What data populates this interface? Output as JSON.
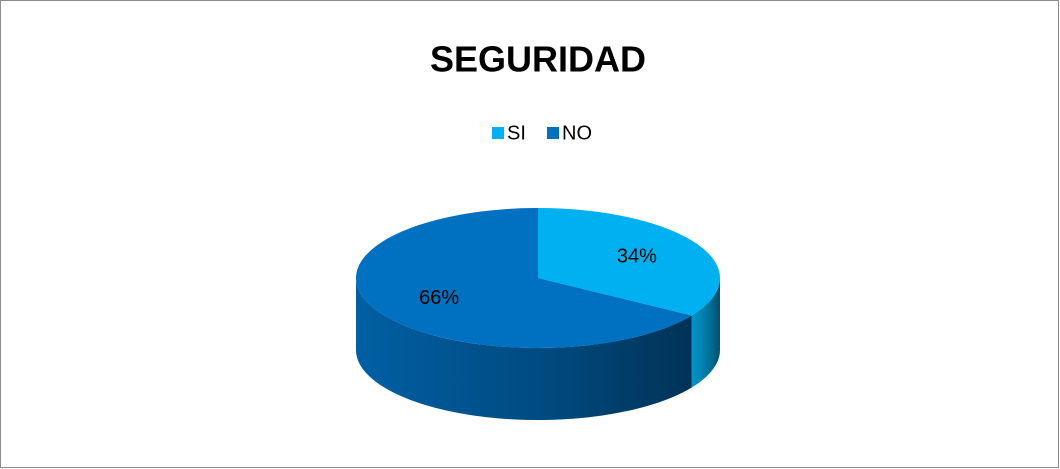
{
  "chart_data": {
    "type": "pie",
    "title": "SEGURIDAD",
    "categories": [
      "SI",
      "NO"
    ],
    "values": [
      34,
      66
    ],
    "value_labels": [
      "34%",
      "66%"
    ],
    "colors": [
      "#00b0f0",
      "#0070c0"
    ],
    "legend": "top"
  }
}
